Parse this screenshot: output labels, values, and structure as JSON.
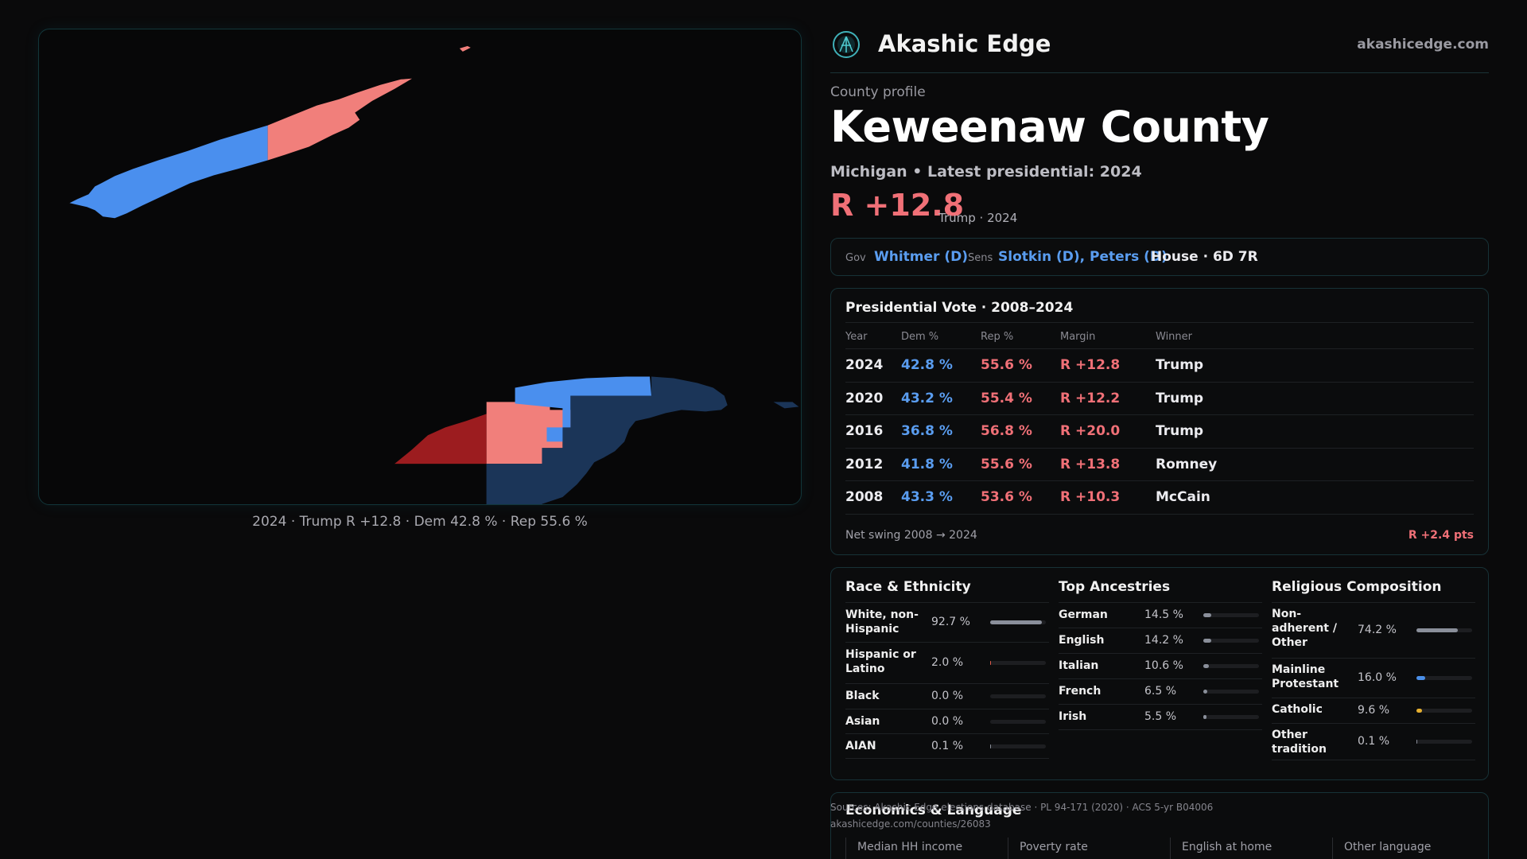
{
  "map": {
    "caption": "2024 · Trump R +12.8 · Dem 42.8 % · Rep 55.6 %"
  },
  "header": {
    "brand": "Akashic Edge",
    "site": "akashicedge.com"
  },
  "profile": {
    "eyebrow": "County profile",
    "title": "Keweenaw County",
    "subtitle": "Michigan • Latest presidential: 2024",
    "margin": "R +12.8",
    "margin_note": "Trump · 2024"
  },
  "officials": {
    "gov_label": "Gov",
    "gov": "Whitmer (D)",
    "sens_label": "Sens",
    "sens": "Slotkin (D), Peters (D)",
    "house": "House · 6D 7R"
  },
  "presidential": {
    "title": "Presidential Vote · 2008–2024",
    "headers": [
      "Year",
      "Dem %",
      "Rep %",
      "Margin",
      "Winner"
    ],
    "rows": [
      {
        "year": "2024",
        "dem": "42.8 %",
        "rep": "55.6 %",
        "margin": "R +12.8",
        "winner": "Trump"
      },
      {
        "year": "2020",
        "dem": "43.2 %",
        "rep": "55.4 %",
        "margin": "R +12.2",
        "winner": "Trump"
      },
      {
        "year": "2016",
        "dem": "36.8 %",
        "rep": "56.8 %",
        "margin": "R +20.0",
        "winner": "Trump"
      },
      {
        "year": "2012",
        "dem": "41.8 %",
        "rep": "55.6 %",
        "margin": "R +13.8",
        "winner": "Romney"
      },
      {
        "year": "2008",
        "dem": "43.3 %",
        "rep": "53.6 %",
        "margin": "R +10.3",
        "winner": "McCain"
      }
    ],
    "swing_label": "Net swing 2008 → 2024",
    "swing_value": "R +2.4 pts"
  },
  "race": {
    "title": "Race & Ethnicity",
    "items": [
      {
        "label": "White, non-Hispanic",
        "value": "92.7 %",
        "share": 0.927
      },
      {
        "label": "Hispanic or Latino",
        "value": "2.0 %",
        "share": 0.02
      },
      {
        "label": "Black",
        "value": "0.0 %",
        "share": 0.0
      },
      {
        "label": "Asian",
        "value": "0.0 %",
        "share": 0.0
      },
      {
        "label": "AIAN",
        "value": "0.1 %",
        "share": 0.001
      }
    ]
  },
  "ancestry": {
    "title": "Top Ancestries",
    "items": [
      {
        "label": "German",
        "value": "14.5 %",
        "share": 0.145
      },
      {
        "label": "English",
        "value": "14.2 %",
        "share": 0.142
      },
      {
        "label": "Italian",
        "value": "10.6 %",
        "share": 0.106
      },
      {
        "label": "French",
        "value": "6.5 %",
        "share": 0.065
      },
      {
        "label": "Irish",
        "value": "5.5 %",
        "share": 0.055
      }
    ]
  },
  "religion": {
    "title": "Religious Composition",
    "items": [
      {
        "label": "Non-adherent / Other",
        "value": "74.2 %",
        "share": 0.742
      },
      {
        "label": "Mainline Protestant",
        "value": "16.0 %",
        "share": 0.16
      },
      {
        "label": "Catholic",
        "value": "9.6 %",
        "share": 0.096
      },
      {
        "label": "Other tradition",
        "value": "0.1 %",
        "share": 0.001
      }
    ]
  },
  "economics": {
    "title": "Economics & Language",
    "columns": [
      "Median HH income",
      "Poverty rate",
      "English at home",
      "Other language"
    ]
  },
  "sources": {
    "line1": "Sources: Akashic Edge elections database · PL 94-171 (2020) · ACS 5-yr B04006",
    "line2": "akashicedge.com/counties/26083"
  },
  "colors": {
    "dem": "#5a9df0",
    "rep": "#f07077",
    "bar_gray": "#8a8f9a",
    "bar_blue": "#4a8fe8",
    "bar_yellow": "#e6b030",
    "bar_red": "#e05a4a",
    "accent": "#12363a"
  }
}
